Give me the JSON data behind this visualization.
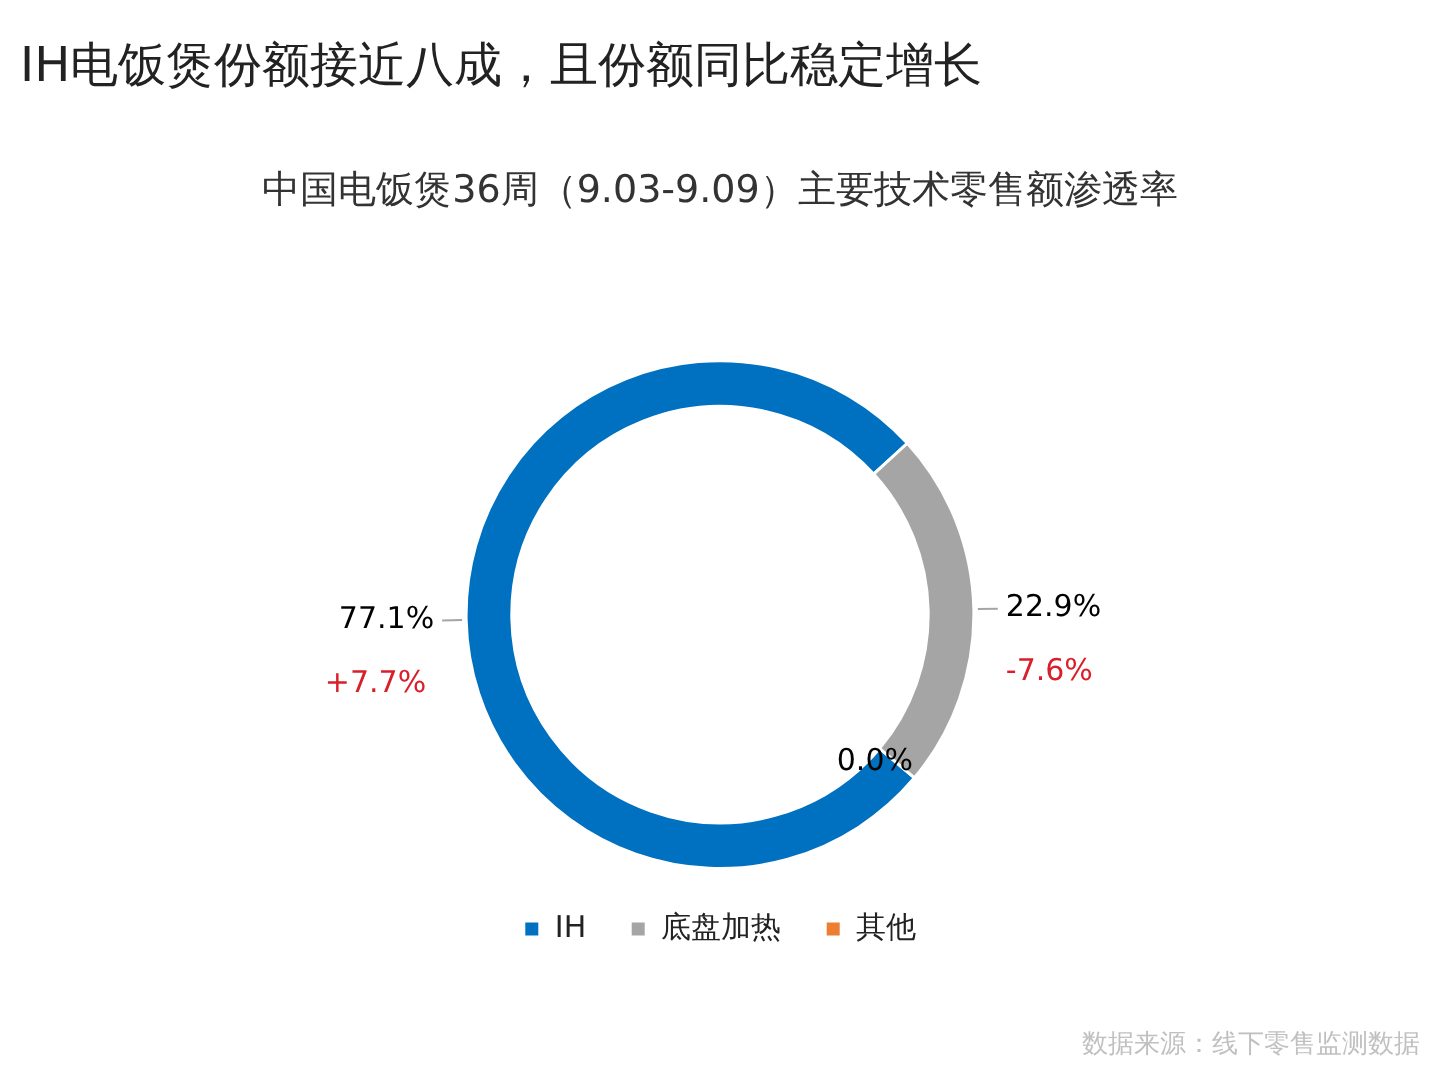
{
  "chart_data": {
    "type": "donut",
    "title": "IH电饭煲份额接近八成，且份额同比稳定增长",
    "subtitle": "中国电饭煲36周（9.03-9.09）主要技术零售额渗透率",
    "categories": [
      "IH",
      "底盘加热",
      "其他"
    ],
    "values": [
      77.1,
      22.9,
      0.0
    ],
    "colors": [
      "#0070c0",
      "#a5a5a5",
      "#ed7d31"
    ],
    "value_labels": [
      "77.1%",
      "22.9%",
      "0.0%"
    ],
    "legend": "bottom",
    "annotations": [
      {
        "text": "+7.7%",
        "x": "IH"
      },
      {
        "text": "-7.6%",
        "x": "底盘加热"
      },
      "数据来源：线下零售监测数据"
    ]
  }
}
